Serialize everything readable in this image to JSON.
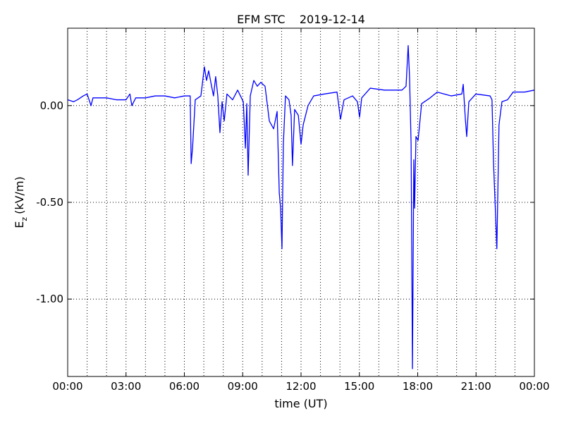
{
  "chart_data": {
    "type": "line",
    "title": "EFM STC    2019-12-14",
    "xlabel": "time (UT)",
    "ylabel": "E",
    "ylabel_sub": "z",
    "ylabel_unit": "(kV/m)",
    "xlim": [
      0,
      24
    ],
    "ylim": [
      -1.4,
      0.4
    ],
    "xticks": [
      {
        "value": 0,
        "label": "00:00"
      },
      {
        "value": 3,
        "label": "03:00"
      },
      {
        "value": 6,
        "label": "06:00"
      },
      {
        "value": 9,
        "label": "09:00"
      },
      {
        "value": 12,
        "label": "12:00"
      },
      {
        "value": 15,
        "label": "15:00"
      },
      {
        "value": 18,
        "label": "18:00"
      },
      {
        "value": 21,
        "label": "21:00"
      },
      {
        "value": 24,
        "label": "00:00"
      }
    ],
    "xminorticks": [
      1,
      2,
      4,
      5,
      7,
      8,
      10,
      11,
      13,
      14,
      16,
      17,
      19,
      20,
      22,
      23
    ],
    "yticks": [
      {
        "value": 0,
        "label": "0.00"
      },
      {
        "value": -0.5,
        "label": "-0.50"
      },
      {
        "value": -1,
        "label": "-1.00"
      }
    ],
    "grid": true,
    "series": [
      {
        "name": "Ez",
        "color": "#0000ff",
        "x": [
          0,
          0.3,
          0.5,
          0.8,
          1.0,
          1.2,
          1.3,
          1.6,
          2.0,
          2.5,
          3.0,
          3.2,
          3.3,
          3.5,
          4.0,
          4.5,
          5.0,
          5.5,
          6.0,
          6.3,
          6.35,
          6.42,
          6.56,
          6.85,
          7.03,
          7.14,
          7.25,
          7.4,
          7.5,
          7.61,
          7.72,
          7.83,
          7.94,
          8.05,
          8.19,
          8.48,
          8.74,
          9.03,
          9.14,
          9.21,
          9.28,
          9.39,
          9.57,
          9.75,
          9.93,
          10.15,
          10.37,
          10.59,
          10.77,
          10.88,
          10.95,
          11.02,
          11.09,
          11.2,
          11.38,
          11.49,
          11.56,
          11.67,
          11.86,
          12.0,
          12.11,
          12.36,
          12.65,
          13.2,
          13.85,
          14.03,
          14.21,
          14.65,
          14.9,
          15.01,
          15.12,
          15.56,
          16.28,
          17.19,
          17.4,
          17.51,
          17.58,
          17.66,
          17.73,
          17.8,
          17.84,
          17.91,
          18.02,
          18.2,
          18.64,
          19.0,
          19.72,
          20.27,
          20.34,
          20.45,
          20.52,
          20.63,
          20.99,
          21.72,
          21.82,
          21.9,
          21.99,
          22.07,
          22.18,
          22.33,
          22.62,
          22.91,
          23.5,
          24
        ],
        "values": [
          0.03,
          0.02,
          0.03,
          0.05,
          0.06,
          0.0,
          0.04,
          0.04,
          0.04,
          0.03,
          0.03,
          0.06,
          0.0,
          0.04,
          0.04,
          0.05,
          0.05,
          0.04,
          0.05,
          0.05,
          -0.3,
          -0.22,
          0.03,
          0.05,
          0.2,
          0.13,
          0.18,
          0.1,
          0.05,
          0.15,
          0.05,
          -0.14,
          0.02,
          -0.08,
          0.06,
          0.03,
          0.08,
          0.02,
          -0.22,
          0.01,
          -0.36,
          0.05,
          0.13,
          0.1,
          0.12,
          0.1,
          -0.08,
          -0.12,
          -0.03,
          -0.45,
          -0.53,
          -0.74,
          -0.2,
          0.05,
          0.03,
          -0.05,
          -0.31,
          -0.02,
          -0.05,
          -0.2,
          -0.1,
          0.0,
          0.05,
          0.06,
          0.07,
          -0.07,
          0.03,
          0.05,
          0.02,
          -0.06,
          0.04,
          0.09,
          0.08,
          0.08,
          0.1,
          0.31,
          0.15,
          -0.2,
          -1.36,
          -0.28,
          -0.53,
          -0.16,
          -0.18,
          0.01,
          0.04,
          0.07,
          0.05,
          0.06,
          0.11,
          -0.07,
          -0.16,
          0.02,
          0.06,
          0.05,
          0.03,
          -0.3,
          -0.53,
          -0.74,
          -0.1,
          0.02,
          0.03,
          0.07,
          0.07,
          0.08
        ]
      }
    ]
  }
}
